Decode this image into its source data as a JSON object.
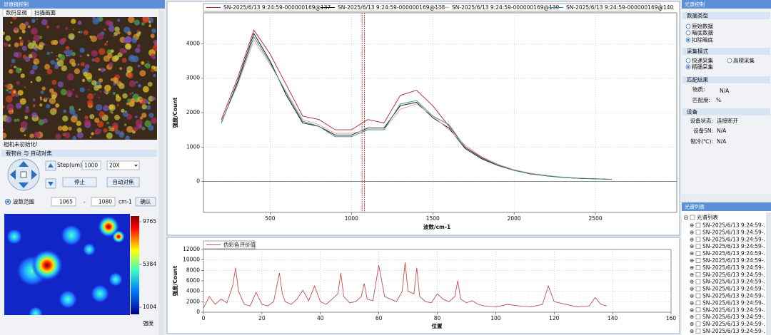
{
  "left_panel": {
    "title": "显微镜控制",
    "tabs": [
      "数码显微",
      "扫描画面"
    ],
    "camera_status": "相机未初始化!",
    "stage_group": "载物台 与 自动对焦",
    "step_label": "Step(um):",
    "step_value": 1000,
    "zoom": "20X",
    "stop_button": "停止",
    "autofocus_button": "自动对焦",
    "range_label": "波数范围",
    "range_min": 1065,
    "range_sep": "-",
    "range_max": 1080,
    "range_unit": "cm-1",
    "confirm_button": "确认"
  },
  "heatmap": {
    "colorbar_ticks": [
      9765,
      5384,
      1004
    ],
    "clim": [
      270,
      10350
    ],
    "colorbar_label": "强度"
  },
  "chart_data": [
    {
      "type": "line",
      "x_label": "波数/cm-1",
      "y_label": "强度/Count",
      "x": [
        200,
        300,
        400,
        500,
        600,
        700,
        800,
        900,
        1000,
        1100,
        1200,
        1300,
        1400,
        1500,
        1600,
        1700,
        1800,
        1900,
        2000,
        2100,
        2200,
        2300,
        2400,
        2500,
        2600
      ],
      "series": [
        {
          "name": "SN-2025/6/13 9:24:59-000000169@137",
          "color": "#b0203e",
          "values": [
            1800,
            3000,
            4400,
            3700,
            2800,
            1900,
            1800,
            1500,
            1500,
            1800,
            1700,
            2500,
            2650,
            2200,
            1600,
            1000,
            700,
            480,
            330,
            230,
            170,
            120,
            90,
            80,
            60
          ]
        },
        {
          "name": "SN-2025/6/13 9:24:59-000000169@138",
          "color": "#111111",
          "values": [
            1700,
            2900,
            4300,
            3500,
            2500,
            1700,
            1600,
            1350,
            1350,
            1550,
            1550,
            2200,
            2300,
            1850,
            1550,
            950,
            660,
            460,
            320,
            220,
            160,
            115,
            90,
            75,
            60
          ]
        },
        {
          "name": "SN-2025/6/13 9:24:59-000000169@139",
          "color": "#e3a58f",
          "values": [
            1750,
            2800,
            4100,
            3400,
            2600,
            1800,
            1650,
            1400,
            1400,
            1500,
            1500,
            2100,
            2250,
            1900,
            1500,
            1050,
            720,
            500,
            340,
            240,
            175,
            125,
            95,
            80,
            65
          ]
        },
        {
          "name": "SN-2025/6/13 9:24:59-000000169@140",
          "color": "#2a8a8a",
          "values": [
            1700,
            2850,
            4200,
            3450,
            2550,
            1750,
            1600,
            1300,
            1300,
            1500,
            1500,
            2250,
            2350,
            1900,
            1650,
            980,
            680,
            470,
            325,
            225,
            165,
            118,
            92,
            78,
            62
          ]
        }
      ],
      "xlim": [
        90,
        3000
      ],
      "xticks": [
        500,
        1000,
        1500,
        2000,
        2500
      ],
      "ylim": [
        -900,
        4900
      ],
      "yticks": [
        0,
        1000,
        2000,
        3000,
        4000
      ],
      "grid": true
    },
    {
      "type": "line",
      "x_label": "位置",
      "y_label": "强度/Count",
      "x": [
        0,
        2,
        4,
        6,
        8,
        10,
        11,
        12,
        14,
        16,
        18,
        20,
        22,
        24,
        26,
        27,
        28,
        30,
        32,
        34,
        36,
        38,
        40,
        42,
        44,
        46,
        47,
        48,
        50,
        52,
        54,
        55,
        56,
        58,
        60,
        61,
        62,
        64,
        66,
        68,
        69,
        70,
        72,
        73,
        74,
        76,
        78,
        80,
        82,
        84,
        86,
        87,
        88,
        90,
        92,
        94,
        96,
        100,
        104,
        108,
        112,
        116,
        118,
        120,
        124,
        128,
        132,
        134,
        136,
        138
      ],
      "series": [
        {
          "name": "伪彩色评价值",
          "color": "#c0504d",
          "values": [
            800,
            3000,
            1500,
            2500,
            1800,
            5000,
            8500,
            4000,
            1500,
            1200,
            3800,
            1500,
            1200,
            2000,
            7500,
            3500,
            2000,
            1500,
            2500,
            4200,
            2200,
            5000,
            2000,
            1500,
            2500,
            3500,
            7500,
            3000,
            1800,
            2000,
            3000,
            5500,
            2500,
            2200,
            9000,
            6000,
            3000,
            2500,
            2000,
            4000,
            9500,
            4000,
            3500,
            8500,
            3000,
            2000,
            1800,
            3500,
            2500,
            2000,
            3000,
            6000,
            2500,
            1800,
            2200,
            1500,
            1200,
            1000,
            1500,
            1200,
            1000,
            1500,
            5000,
            2000,
            1500,
            1000,
            1200,
            2800,
            1500,
            1200
          ]
        }
      ],
      "xlim": [
        0,
        160
      ],
      "xticks": [
        0,
        20,
        40,
        60,
        80,
        100,
        120,
        140,
        160
      ],
      "ylim": [
        0,
        12000
      ],
      "yticks": [
        0,
        2000,
        4000,
        6000,
        8000,
        10000,
        12000
      ],
      "grid": true
    }
  ],
  "right_panel": {
    "title": "光谱控制",
    "data_type": {
      "title": "数据类型",
      "options": [
        "原始数据",
        "暗底数据",
        "扣除暗底"
      ],
      "selected": 2
    },
    "mode": {
      "title": "采集模式",
      "options": [
        "快速采集",
        "高精采集",
        "精确采集"
      ],
      "selected": 2
    },
    "match": {
      "title": "匹配结果",
      "substance_label": "物质:",
      "substance": "N/A",
      "degree_label": "匹配度:",
      "degree_unit": "%"
    },
    "device": {
      "title": "设备",
      "status_label": "设备状态:",
      "status": "连接断开",
      "sn_label": "设备SN:",
      "sn": "N/A",
      "cooling_label": "制冷(℃):",
      "cooling": "N/A"
    }
  },
  "spectrum_list": {
    "title": "光谱列表",
    "root": "光谱列表",
    "items": [
      {
        "label": "SN-2025/6/13 9:24:59-...",
        "color": "#c8a000"
      },
      {
        "label": "SN-2025/6/13 9:24:59-...",
        "color": "#b02020"
      },
      {
        "label": "SN-2025/6/13 9:24:59-...",
        "color": "#222222"
      },
      {
        "label": "SN-2025/6/13 9:24:59-...",
        "color": "#e09080"
      },
      {
        "label": "SN-2025/6/13 9:24:59-...",
        "color": "#2a8a8a"
      },
      {
        "label": "SN-2025/6/13 9:24:59-...",
        "color": "#d8c060"
      },
      {
        "label": "SN-2025/6/13 9:24:59-...",
        "color": "#8040a0"
      },
      {
        "label": "SN-2025/6/13 9:24:59-...",
        "color": "#30a090"
      },
      {
        "label": "SN-2025/6/13 9:24:59-...",
        "color": "#a0c0d0"
      },
      {
        "label": "SN-2025/6/13 9:24:59-...",
        "color": "#a03070"
      },
      {
        "label": "SN-2025/6/13 9:24:59-...",
        "color": "#207020"
      },
      {
        "label": "SN-2025/6/13 9:24:59-...",
        "color": "#40a040"
      },
      {
        "label": "SN-2025/6/13 9:24:59-...",
        "color": "#7030a0"
      },
      {
        "label": "SN-2025/6/13 9:24:59-...",
        "color": "#333333"
      },
      {
        "label": "SN-2025/6/13 9:24:59-...",
        "color": "#909020"
      },
      {
        "label": "SN-2025/6/13 9:24:59-...",
        "color": "#e0b000"
      }
    ]
  }
}
